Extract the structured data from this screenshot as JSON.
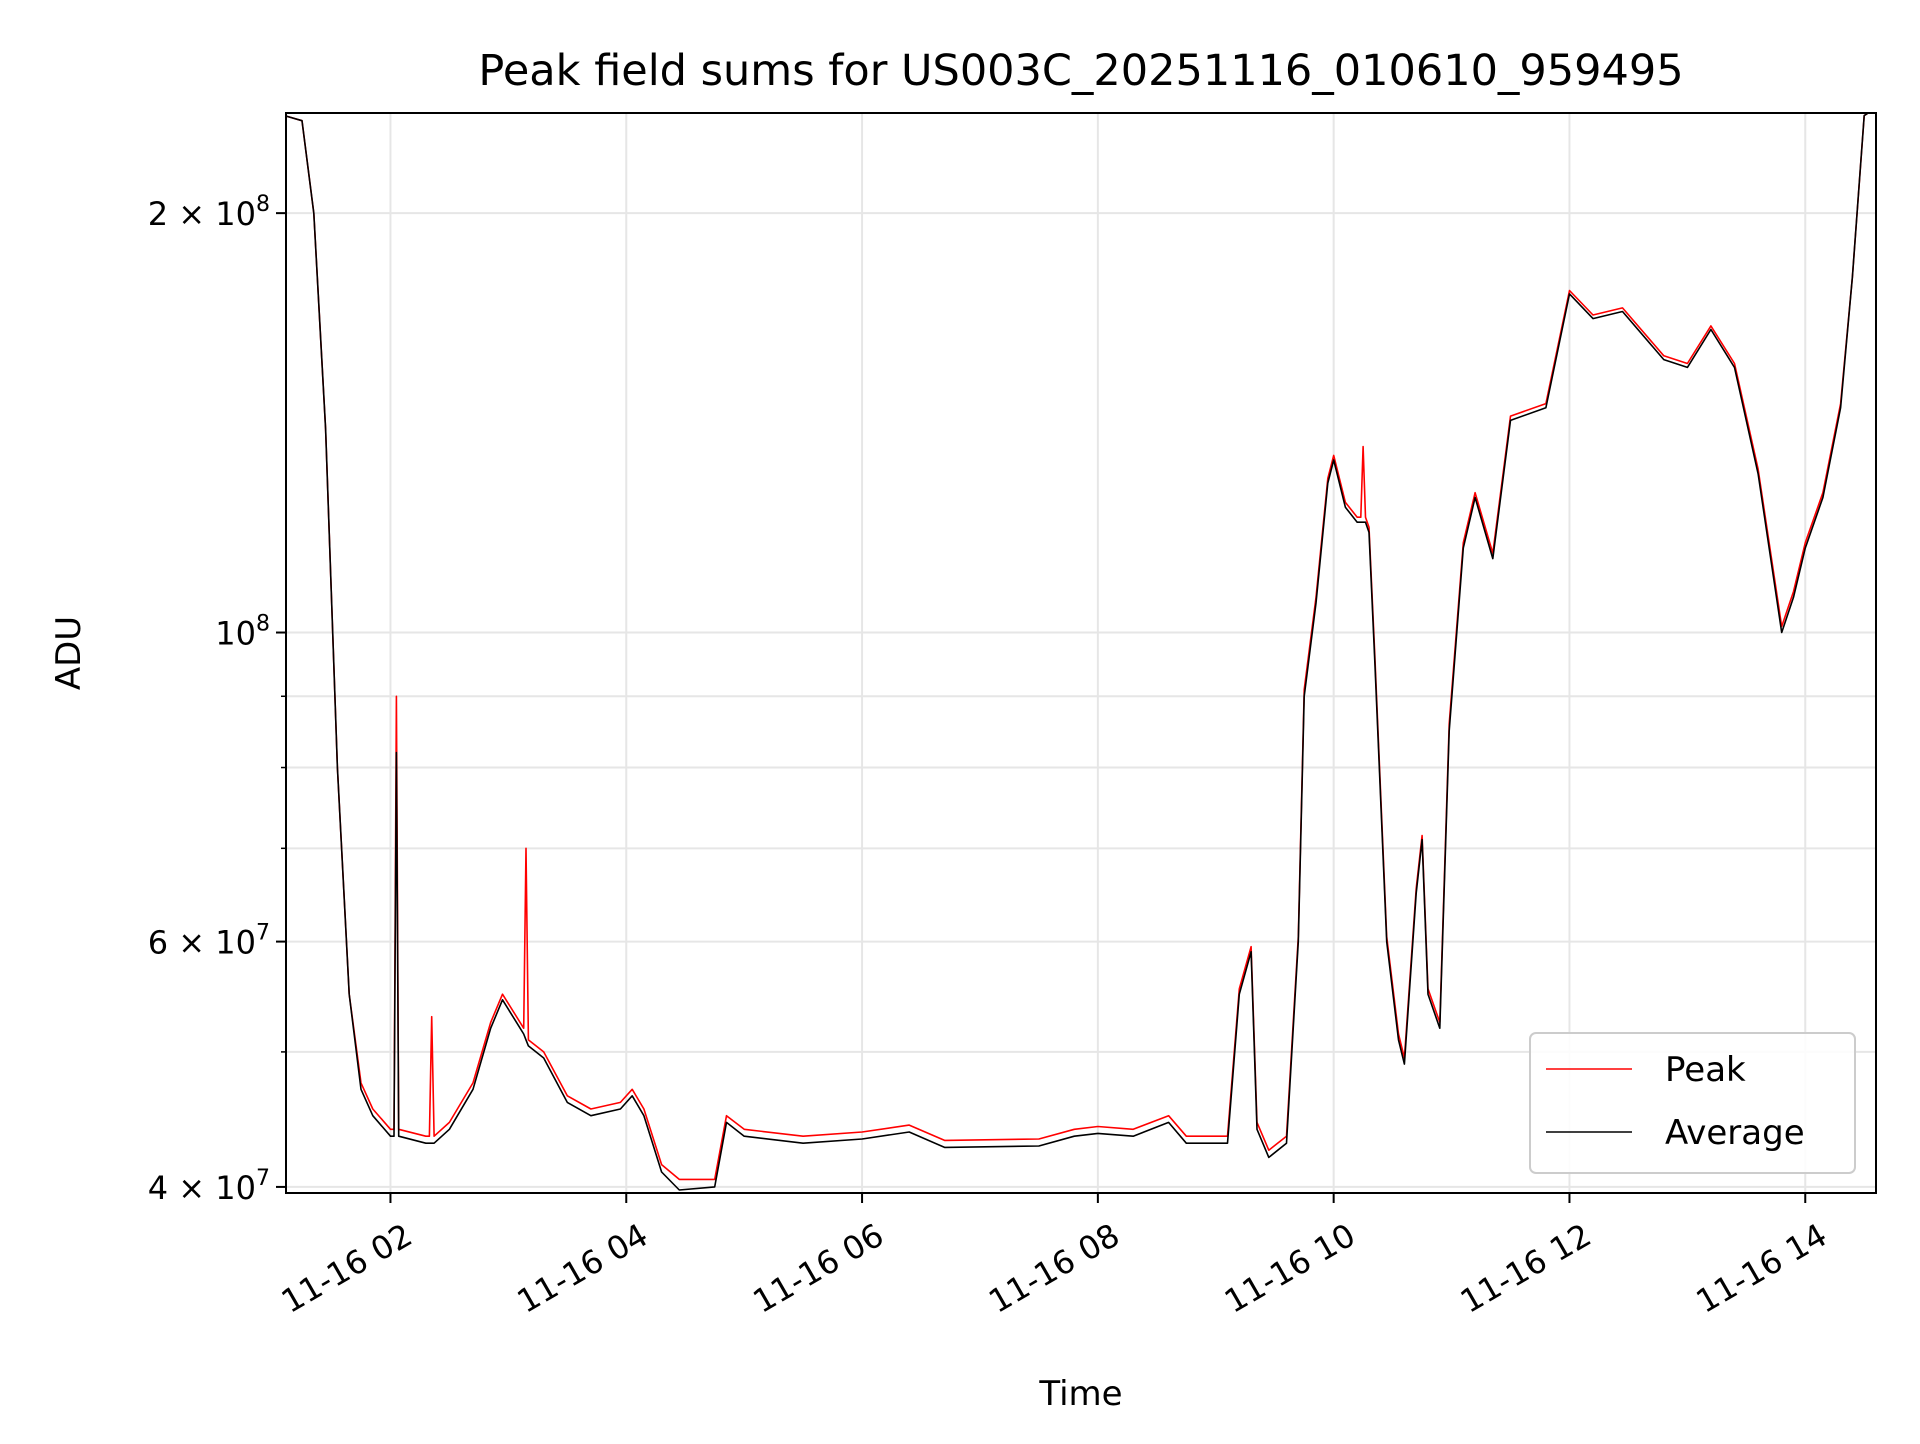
{
  "chart_data": {
    "type": "line",
    "title": "Peak field sums for US003C_20251116_010610_959495",
    "xlabel": "Time",
    "ylabel": "ADU",
    "yscale": "log",
    "x_units": "hours since 11-16 00:00",
    "xlim": [
      1.114,
      14.6
    ],
    "ylim": [
      39600000.0,
      236000000.0
    ],
    "grid": true,
    "legend_position": "lower-right",
    "x_ticks": [
      {
        "value": 2,
        "label": "11-16 02"
      },
      {
        "value": 4,
        "label": "11-16 04"
      },
      {
        "value": 6,
        "label": "11-16 06"
      },
      {
        "value": 8,
        "label": "11-16 08"
      },
      {
        "value": 10,
        "label": "11-16 10"
      },
      {
        "value": 12,
        "label": "11-16 12"
      },
      {
        "value": 14,
        "label": "11-16 14"
      }
    ],
    "y_ticks": [
      {
        "value": 40000000.0,
        "mant": "4",
        "exp": "7"
      },
      {
        "value": 60000000.0,
        "mant": "6",
        "exp": "7"
      },
      {
        "value": 100000000.0,
        "mant": "",
        "exp": "8"
      },
      {
        "value": 200000000.0,
        "mant": "2",
        "exp": "8"
      }
    ],
    "y_minor_ticks": [
      50000000.0,
      70000000.0,
      80000000.0,
      90000000.0
    ],
    "x": [
      1.1,
      1.25,
      1.35,
      1.45,
      1.55,
      1.65,
      1.75,
      1.85,
      2.0,
      2.03,
      2.05,
      2.07,
      2.3,
      2.33,
      2.35,
      2.37,
      2.5,
      2.7,
      2.85,
      2.95,
      3.1,
      3.13,
      3.15,
      3.17,
      3.3,
      3.5,
      3.7,
      3.95,
      4.05,
      4.15,
      4.3,
      4.45,
      4.75,
      4.85,
      5.0,
      5.5,
      6.0,
      6.4,
      6.7,
      7.5,
      7.8,
      8.0,
      8.3,
      8.6,
      8.75,
      9.0,
      9.1,
      9.2,
      9.3,
      9.35,
      9.45,
      9.6,
      9.7,
      9.75,
      9.85,
      9.95,
      10.0,
      10.1,
      10.2,
      10.23,
      10.25,
      10.27,
      10.3,
      10.35,
      10.45,
      10.55,
      10.6,
      10.7,
      10.75,
      10.8,
      10.9,
      10.98,
      11.1,
      11.2,
      11.35,
      11.5,
      11.8,
      12.0,
      12.2,
      12.45,
      12.8,
      13.0,
      13.2,
      13.4,
      13.6,
      13.8,
      13.9,
      14.0,
      14.15,
      14.3,
      14.4,
      14.5,
      14.6
    ],
    "series": [
      {
        "name": "Peak",
        "color": "#ff0000",
        "values_1e7": [
          23.5,
          23.3,
          20,
          14,
          8,
          5.5,
          4.75,
          4.55,
          4.4,
          4.4,
          9.0,
          4.4,
          4.35,
          4.35,
          5.3,
          4.35,
          4.45,
          4.75,
          5.25,
          5.5,
          5.25,
          5.2,
          7.0,
          5.1,
          5.0,
          4.65,
          4.55,
          4.6,
          4.7,
          4.55,
          4.15,
          4.05,
          4.05,
          4.5,
          4.4,
          4.35,
          4.38,
          4.43,
          4.32,
          4.33,
          4.4,
          4.42,
          4.4,
          4.5,
          4.35,
          4.35,
          4.35,
          5.55,
          5.95,
          4.45,
          4.25,
          4.35,
          6.05,
          9.1,
          10.6,
          12.9,
          13.4,
          12.4,
          12.1,
          12.1,
          13.6,
          12.1,
          11.9,
          9.6,
          6.05,
          5.15,
          4.95,
          6.55,
          7.15,
          5.55,
          5.25,
          8.6,
          11.6,
          12.6,
          11.4,
          14.3,
          14.6,
          17.6,
          16.9,
          17.1,
          15.8,
          15.6,
          16.6,
          15.6,
          13.1,
          10.1,
          10.7,
          11.6,
          12.6,
          14.6,
          18,
          23.5,
          23.8
        ]
      },
      {
        "name": "Average",
        "color": "#000000",
        "values_1e7": [
          23.5,
          23.3,
          20,
          14,
          8,
          5.5,
          4.7,
          4.5,
          4.35,
          4.35,
          8.2,
          4.35,
          4.3,
          4.3,
          4.3,
          4.3,
          4.4,
          4.7,
          5.2,
          5.45,
          5.2,
          5.15,
          5.1,
          5.05,
          4.95,
          4.6,
          4.5,
          4.55,
          4.65,
          4.5,
          4.1,
          3.98,
          4.0,
          4.45,
          4.35,
          4.3,
          4.33,
          4.38,
          4.27,
          4.28,
          4.35,
          4.37,
          4.35,
          4.45,
          4.3,
          4.3,
          4.3,
          5.5,
          5.9,
          4.4,
          4.2,
          4.3,
          6.0,
          9.0,
          10.5,
          12.8,
          13.3,
          12.3,
          12.0,
          12.0,
          12.0,
          12.0,
          11.8,
          9.5,
          6.0,
          5.1,
          4.9,
          6.5,
          7.1,
          5.5,
          5.2,
          8.5,
          11.5,
          12.5,
          11.3,
          14.2,
          14.5,
          17.5,
          16.8,
          17.0,
          15.7,
          15.5,
          16.5,
          15.5,
          13.0,
          10.0,
          10.6,
          11.5,
          12.5,
          14.5,
          18,
          23.5,
          23.8
        ]
      }
    ]
  }
}
